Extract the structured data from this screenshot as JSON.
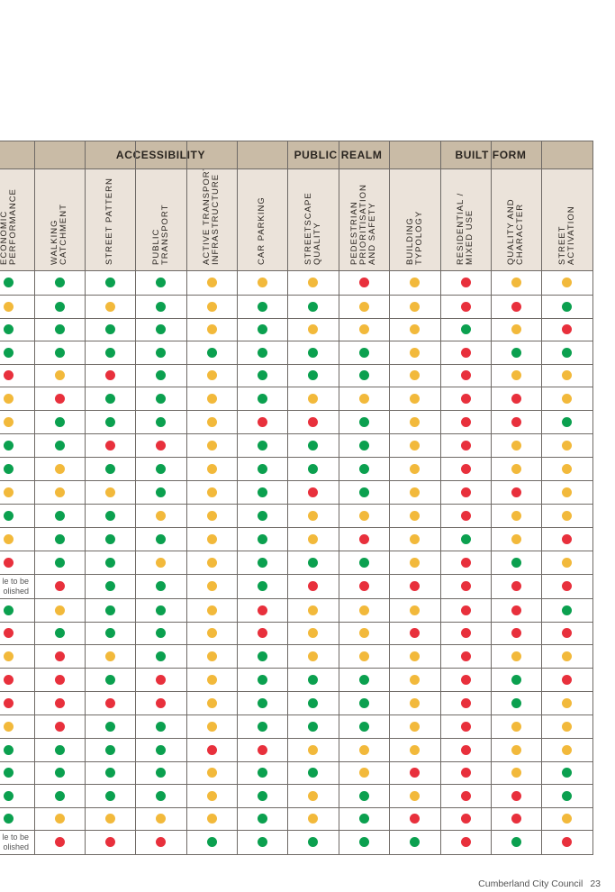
{
  "groups": [
    {
      "label": "",
      "span": 1
    },
    {
      "label": "ACCESSIBILITY",
      "span": 5
    },
    {
      "label": "PUBLIC REALM",
      "span": 2
    },
    {
      "label": "BUILT FORM",
      "span": 4
    }
  ],
  "columns": [
    "ECONOMIC\nPERFORMANCE",
    "WALKING\nCATCHMENT",
    "STREET PATTERN",
    "PUBLIC\nTRANSPORT",
    "ACTIVE TRANSPORT\nINFRASTRUCTURE",
    "CAR PARKING",
    "STREETSCAPE\nQUALITY",
    "PEDESTRIAN\nPRIORITISATION\nAND SAFETY",
    "BUILDING\nTYPOLOGY",
    "RESIDENTIAL /\nMIXED USE",
    "QUALITY AND\nCHARACTER",
    "STREET\nACTIVATION"
  ],
  "colors": {
    "G": "#0ba04f",
    "Y": "#f2b93b",
    "R": "#e8303c",
    "header_group": "#c9bba6",
    "header_col": "#ebe3da",
    "grid": "#6f6a66"
  },
  "legend_codes": {
    "G": "green",
    "Y": "amber",
    "R": "red"
  },
  "rows": [
    "GGGGYYYRYRYY",
    "YGYGYGGYYRRG",
    "GGGGYGYYYGYR",
    "GGGGGGGGYRGG",
    "RYRGYGGGYRYY",
    "YRGGYGYYYRRY",
    "YGGGYRRGYRRG",
    "GGRRYGGGYRYY",
    "GYGGYGGGYRYY",
    "YYYGYGRGYRRY",
    "GGGYYGYYYRYY",
    "YGGGYGYRYGYR",
    "RGGYYGGGYRGY",
    {
      "note": "le to be\nolished",
      "dots": "-RGGYGRRRRRR"
    },
    "GYGGYRYYYRRG",
    "RGGGYRYYRRRR",
    "YRYGYGYYYRYY",
    "RRGRYGGGYRGR",
    "RRRRYGGGYRGY",
    "YRGGYGGGYRYY",
    "GGGGRRYYYRYY",
    "GGGGYGGYRRYG",
    "GGGGYGYGYRRG",
    "GYYYYGYGRRRY",
    {
      "note": "le to be\nolished",
      "dots": "-RRRGGGGGRGR"
    }
  ],
  "footer": {
    "council": "Cumberland City Council",
    "page": "23"
  }
}
